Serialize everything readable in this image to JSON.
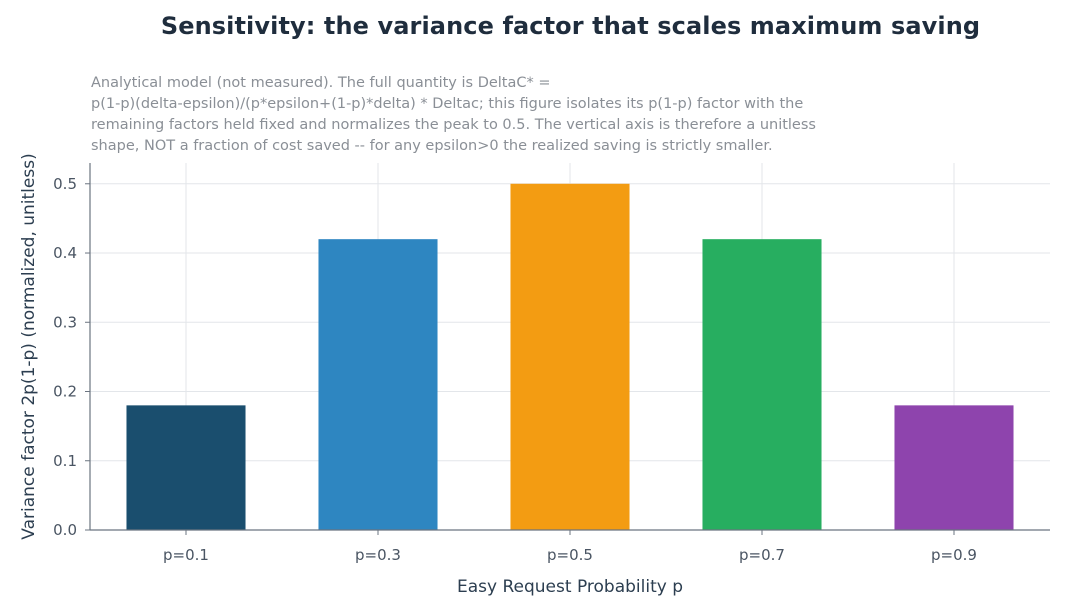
{
  "chart_data": {
    "type": "bar",
    "title": "Sensitivity: the variance factor that scales maximum saving",
    "subtitle_lines": [
      "Analytical model (not measured). The full quantity is DeltaC* =",
      "p(1-p)(delta-epsilon)/(p*epsilon+(1-p)*delta) * Deltac; this figure isolates its p(1-p) factor with the",
      "remaining factors held fixed and normalizes the peak to 0.5. The vertical axis is therefore a unitless",
      "shape, NOT a fraction of cost saved -- for any epsilon>0 the realized saving is strictly smaller."
    ],
    "xlabel": "Easy Request Probability p",
    "ylabel": "Variance factor 2p(1-p) (normalized, unitless)",
    "categories": [
      "p=0.1",
      "p=0.3",
      "p=0.5",
      "p=0.7",
      "p=0.9"
    ],
    "values": [
      0.18,
      0.42,
      0.5,
      0.42,
      0.18
    ],
    "colors": [
      "#1a4e6e",
      "#2e86c1",
      "#f39c12",
      "#27ae60",
      "#8e44ad"
    ],
    "ylim": [
      0,
      0.53
    ],
    "yticks": [
      0.0,
      0.1,
      0.2,
      0.3,
      0.4,
      0.5
    ],
    "ytick_labels": [
      "0.0",
      "0.1",
      "0.2",
      "0.3",
      "0.4",
      "0.5"
    ],
    "grid": true,
    "legend": "none"
  }
}
